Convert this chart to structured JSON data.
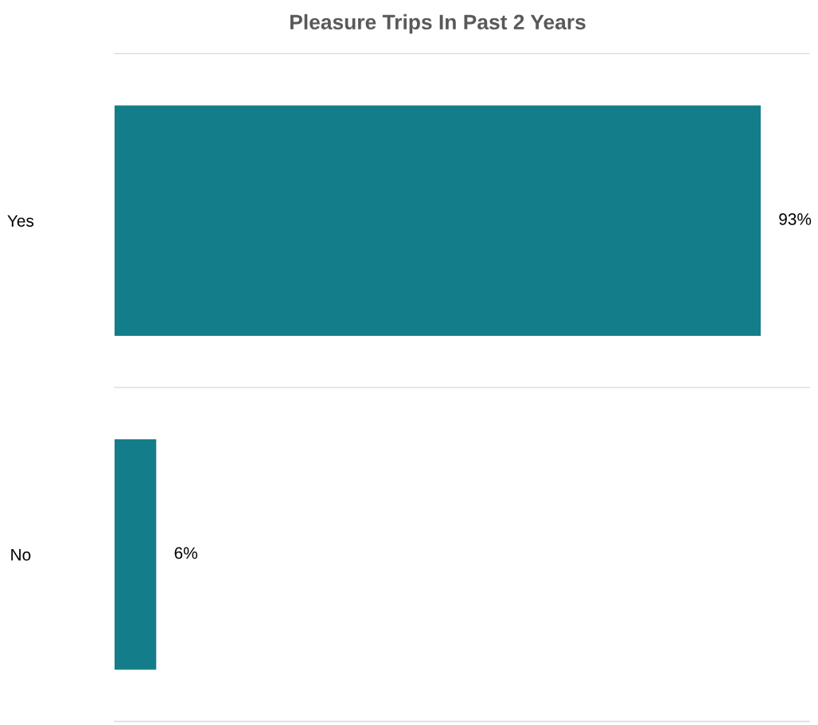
{
  "chart_data": {
    "type": "bar",
    "orientation": "horizontal",
    "title": "Pleasure Trips In Past 2 Years",
    "categories": [
      "Yes",
      "No"
    ],
    "values": [
      93,
      6
    ],
    "value_labels": [
      "93%",
      "6%"
    ],
    "color": "#137e89",
    "grid": "y",
    "legend": false
  }
}
